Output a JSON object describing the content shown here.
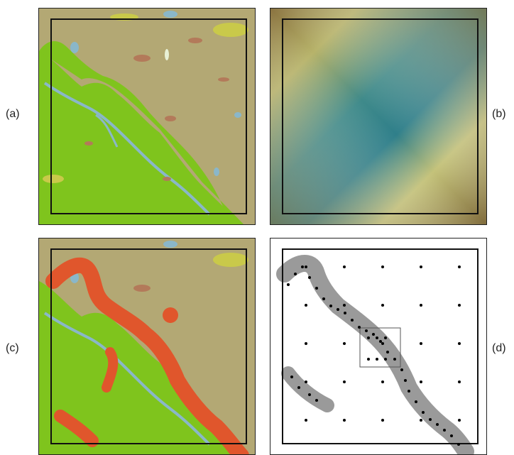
{
  "labels": {
    "a": "(a)",
    "b": "(b)",
    "c": "(c)",
    "d": "(d)"
  },
  "colors": {
    "landcover_base": "#b3a874",
    "forest_green": "#7fc41d",
    "water_blue": "#8ab7c9",
    "patch_brown": "#b37a5a",
    "patch_yellow": "#c9c94a",
    "buffer_red": "#e0562c",
    "dem_low": "#2f7f8a",
    "dem_high": "#8a7340",
    "sample_gray": "#9a9a9a",
    "sample_dot": "#000000"
  },
  "icons": {
    "study_area_frame": "black-rectangle-outline"
  }
}
